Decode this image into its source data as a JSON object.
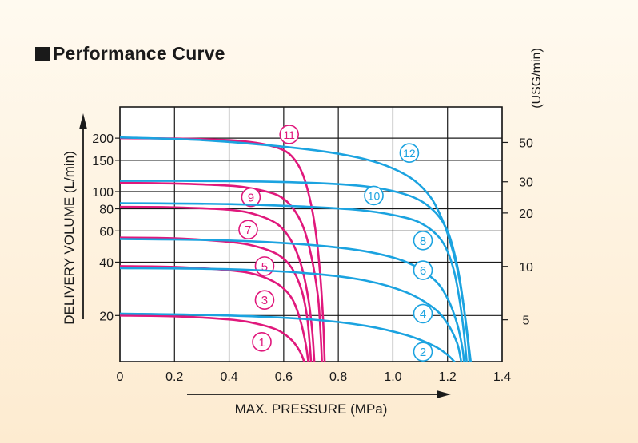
{
  "title": "Performance Curve",
  "chart_data": {
    "type": "line",
    "title": "Performance Curve",
    "xlabel": "MAX. PRESSURE (MPa)",
    "ylabel": "DELIVERY VOLUME (L/min)",
    "y2label": "(USG/min)",
    "x_ticks": [
      "0",
      "0.2",
      "0.4",
      "0.6",
      "0.8",
      "1.0",
      "1.2",
      "1.4"
    ],
    "xlim": [
      0,
      1.4
    ],
    "y_scale": "log",
    "ylim": [
      11,
      300
    ],
    "y_ticks": [
      {
        "value": 20,
        "label": "20"
      },
      {
        "value": 40,
        "label": "40"
      },
      {
        "value": 60,
        "label": "60"
      },
      {
        "value": 80,
        "label": "80"
      },
      {
        "value": 100,
        "label": "100"
      },
      {
        "value": 150,
        "label": "150"
      },
      {
        "value": 200,
        "label": "200"
      }
    ],
    "y2_ticks": [
      {
        "value": 5,
        "label": "5"
      },
      {
        "value": 10,
        "label": "10"
      },
      {
        "value": 20,
        "label": "20"
      },
      {
        "value": 30,
        "label": "30"
      },
      {
        "value": 50,
        "label": "50"
      }
    ],
    "grid": true,
    "colors": {
      "magenta": "#e0187c",
      "cyan": "#1ba3e0",
      "axis": "#1a1a1a"
    },
    "series": [
      {
        "name": "1",
        "color": "#e0187c",
        "points": [
          [
            0,
            20
          ],
          [
            0.2,
            19.8
          ],
          [
            0.4,
            19
          ],
          [
            0.5,
            18
          ],
          [
            0.58,
            16.5
          ],
          [
            0.63,
            14.5
          ],
          [
            0.66,
            12.5
          ],
          [
            0.675,
            11
          ]
        ],
        "label_at": [
          0.52,
          14.2
        ]
      },
      {
        "name": "3",
        "color": "#e0187c",
        "points": [
          [
            0,
            38
          ],
          [
            0.2,
            37.6
          ],
          [
            0.4,
            36
          ],
          [
            0.5,
            34
          ],
          [
            0.58,
            30
          ],
          [
            0.63,
            25
          ],
          [
            0.66,
            19
          ],
          [
            0.68,
            14
          ],
          [
            0.69,
            11
          ]
        ],
        "label_at": [
          0.53,
          24.5
        ]
      },
      {
        "name": "5",
        "color": "#e0187c",
        "points": [
          [
            0,
            55
          ],
          [
            0.2,
            54.5
          ],
          [
            0.4,
            52
          ],
          [
            0.5,
            49
          ],
          [
            0.58,
            44
          ],
          [
            0.63,
            37
          ],
          [
            0.665,
            28
          ],
          [
            0.685,
            20
          ],
          [
            0.695,
            14
          ],
          [
            0.7,
            11
          ]
        ],
        "label_at": [
          0.53,
          38
        ]
      },
      {
        "name": "7",
        "color": "#e0187c",
        "points": [
          [
            0,
            82
          ],
          [
            0.2,
            81.5
          ],
          [
            0.4,
            79
          ],
          [
            0.5,
            74
          ],
          [
            0.58,
            65
          ],
          [
            0.63,
            52
          ],
          [
            0.665,
            38
          ],
          [
            0.69,
            25
          ],
          [
            0.705,
            16
          ],
          [
            0.712,
            11
          ]
        ],
        "label_at": [
          0.47,
          61
        ]
      },
      {
        "name": "9",
        "color": "#e0187c",
        "points": [
          [
            0,
            112
          ],
          [
            0.2,
            111
          ],
          [
            0.4,
            108
          ],
          [
            0.5,
            103
          ],
          [
            0.58,
            95
          ],
          [
            0.63,
            82
          ],
          [
            0.67,
            64
          ],
          [
            0.7,
            44
          ],
          [
            0.725,
            26
          ],
          [
            0.735,
            16
          ],
          [
            0.74,
            11
          ]
        ],
        "label_at": [
          0.48,
          93
        ]
      },
      {
        "name": "11",
        "color": "#e0187c",
        "points": [
          [
            0,
            200
          ],
          [
            0.2,
            199
          ],
          [
            0.4,
            195
          ],
          [
            0.5,
            188
          ],
          [
            0.58,
            176
          ],
          [
            0.63,
            158
          ],
          [
            0.67,
            125
          ],
          [
            0.7,
            85
          ],
          [
            0.72,
            55
          ],
          [
            0.735,
            32
          ],
          [
            0.745,
            18
          ],
          [
            0.75,
            11
          ]
        ],
        "label_at": [
          0.62,
          210
        ]
      },
      {
        "name": "2",
        "color": "#1ba3e0",
        "points": [
          [
            0,
            20.5
          ],
          [
            0.4,
            20
          ],
          [
            0.7,
            19
          ],
          [
            0.9,
            17.5
          ],
          [
            1.05,
            15.5
          ],
          [
            1.15,
            13.5
          ],
          [
            1.2,
            12
          ],
          [
            1.225,
            11
          ]
        ],
        "label_at": [
          1.11,
          12.5
        ]
      },
      {
        "name": "4",
        "color": "#1ba3e0",
        "points": [
          [
            0,
            37
          ],
          [
            0.4,
            36.5
          ],
          [
            0.7,
            34.5
          ],
          [
            0.9,
            31.5
          ],
          [
            1.05,
            27
          ],
          [
            1.15,
            22
          ],
          [
            1.2,
            18
          ],
          [
            1.235,
            14
          ],
          [
            1.25,
            11
          ]
        ],
        "label_at": [
          1.11,
          20.5
        ]
      },
      {
        "name": "6",
        "color": "#1ba3e0",
        "points": [
          [
            0,
            54
          ],
          [
            0.4,
            53
          ],
          [
            0.7,
            50
          ],
          [
            0.9,
            46
          ],
          [
            1.05,
            40
          ],
          [
            1.15,
            32
          ],
          [
            1.2,
            25
          ],
          [
            1.235,
            18
          ],
          [
            1.255,
            13
          ],
          [
            1.26,
            11
          ]
        ],
        "label_at": [
          1.11,
          36
        ]
      },
      {
        "name": "8",
        "color": "#1ba3e0",
        "points": [
          [
            0,
            86
          ],
          [
            0.4,
            85
          ],
          [
            0.7,
            82
          ],
          [
            0.9,
            78
          ],
          [
            1.05,
            71
          ],
          [
            1.12,
            64
          ],
          [
            1.17,
            55
          ],
          [
            1.2,
            46
          ],
          [
            1.225,
            35
          ],
          [
            1.245,
            24
          ],
          [
            1.26,
            16
          ],
          [
            1.27,
            11
          ]
        ],
        "label_at": [
          1.11,
          53
        ]
      },
      {
        "name": "10",
        "color": "#1ba3e0",
        "points": [
          [
            0,
            115
          ],
          [
            0.4,
            114.5
          ],
          [
            0.7,
            112
          ],
          [
            0.9,
            107
          ],
          [
            1.02,
            99
          ],
          [
            1.1,
            89
          ],
          [
            1.16,
            75
          ],
          [
            1.2,
            60
          ],
          [
            1.225,
            45
          ],
          [
            1.245,
            32
          ],
          [
            1.26,
            22
          ],
          [
            1.275,
            14
          ],
          [
            1.28,
            11
          ]
        ],
        "label_at": [
          0.93,
          95
        ]
      },
      {
        "name": "12",
        "color": "#1ba3e0",
        "points": [
          [
            0,
            202
          ],
          [
            0.3,
            195
          ],
          [
            0.55,
            182
          ],
          [
            0.75,
            168
          ],
          [
            0.9,
            152
          ],
          [
            1.0,
            135
          ],
          [
            1.08,
            115
          ],
          [
            1.14,
            92
          ],
          [
            1.18,
            70
          ],
          [
            1.21,
            52
          ],
          [
            1.235,
            37
          ],
          [
            1.255,
            25
          ],
          [
            1.27,
            17
          ],
          [
            1.285,
            11
          ]
        ],
        "label_at": [
          1.06,
          165
        ]
      }
    ]
  }
}
